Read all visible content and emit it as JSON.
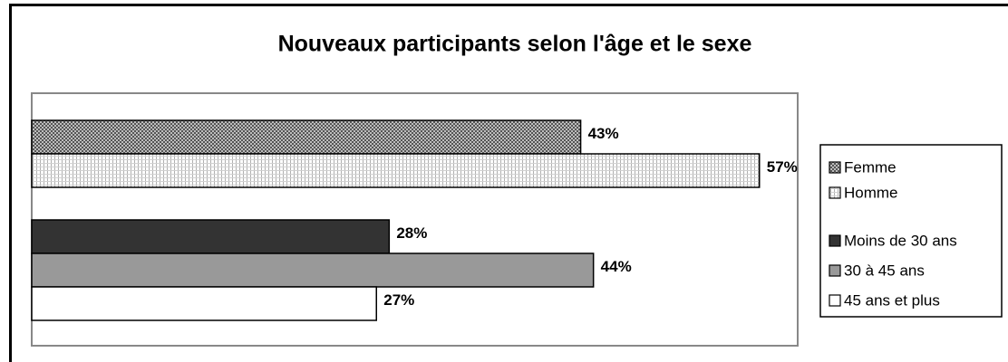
{
  "chart_data": {
    "type": "hbar-grouped",
    "title": "Nouveaux participants selon l'âge et le sexe",
    "categories": [
      null,
      null
    ],
    "xlim": [
      0,
      60
    ],
    "series": [
      {
        "name": "Femme",
        "color": "#8a8a8a",
        "pattern": "crosshatch",
        "values": [
          43,
          null
        ],
        "value_labels": [
          "43%",
          null
        ]
      },
      {
        "name": "Homme",
        "color": "#f0f0f0",
        "pattern": "grid",
        "values": [
          57,
          null
        ],
        "value_labels": [
          "57%",
          null
        ]
      },
      {
        "name": "Moins de 30 ans",
        "color": "#333333",
        "values": [
          null,
          28
        ],
        "value_labels": [
          null,
          "28%"
        ]
      },
      {
        "name": "30 à 45 ans",
        "color": "#999999",
        "values": [
          null,
          44
        ],
        "value_labels": [
          null,
          "44%"
        ]
      },
      {
        "name": "45 ans et plus",
        "color": "#ffffff",
        "values": [
          null,
          27
        ],
        "value_labels": [
          null,
          "27%"
        ]
      }
    ]
  }
}
